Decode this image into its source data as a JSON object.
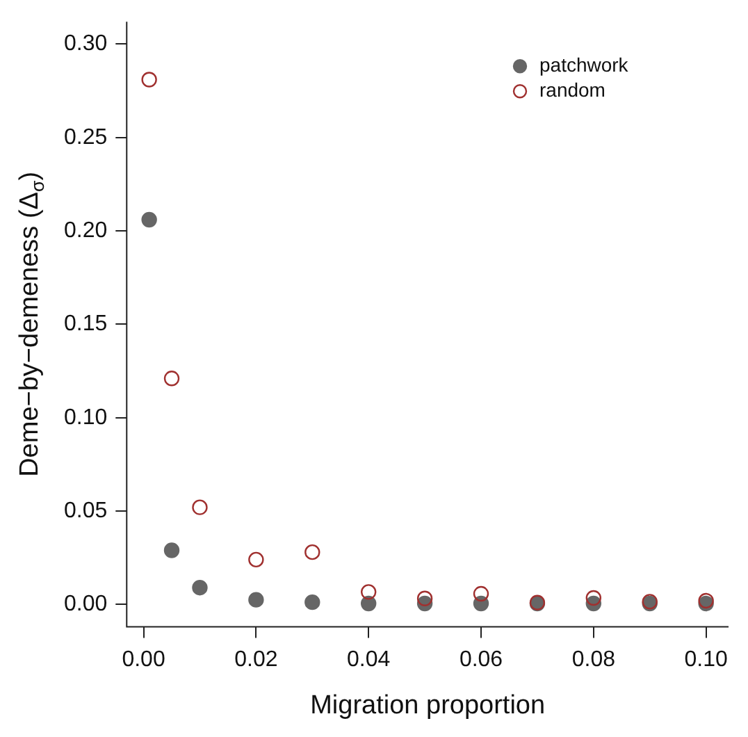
{
  "chart_data": {
    "type": "scatter",
    "xlabel": "Migration proportion",
    "ylabel": "Deme−by−demeness (Δ$_{σ}$)",
    "x": [
      0.001,
      0.005,
      0.01,
      0.02,
      0.03,
      0.04,
      0.05,
      0.06,
      0.07,
      0.08,
      0.09,
      0.1
    ],
    "series": [
      {
        "name": "patchwork",
        "color": "#666666",
        "marker": "circle",
        "values": [
          0.206,
          0.029,
          0.009,
          0.0025,
          0.0012,
          0.0005,
          0.0005,
          0.0005,
          0.0005,
          0.0005,
          0.0005,
          0.0005
        ]
      },
      {
        "name": "random",
        "color": "#a0302f",
        "marker": "open-circle",
        "values": [
          0.281,
          0.121,
          0.052,
          0.024,
          0.028,
          0.0067,
          0.0032,
          0.0057,
          0.001,
          0.0035,
          0.0015,
          0.002
        ]
      }
    ],
    "xlim": [
      -0.003,
      0.104
    ],
    "xticks": [
      {
        "value": 0,
        "label": "0.00"
      },
      {
        "value": 0.02,
        "label": "0.02"
      },
      {
        "value": 0.04,
        "label": "0.04"
      },
      {
        "value": 0.06,
        "label": "0.06"
      },
      {
        "value": 0.08,
        "label": "0.08"
      },
      {
        "value": 0.1,
        "label": "0.10"
      }
    ],
    "ylim": [
      -0.012,
      0.312
    ],
    "yticks": [
      {
        "value": 0,
        "label": "0.00"
      },
      {
        "value": 0.05,
        "label": "0.05"
      },
      {
        "value": 0.1,
        "label": "0.10"
      },
      {
        "value": 0.15,
        "label": "0.15"
      },
      {
        "value": 0.2,
        "label": "0.20"
      },
      {
        "value": 0.25,
        "label": "0.25"
      },
      {
        "value": 0.3,
        "label": "0.30"
      }
    ],
    "grid": false,
    "legend": "top right"
  }
}
